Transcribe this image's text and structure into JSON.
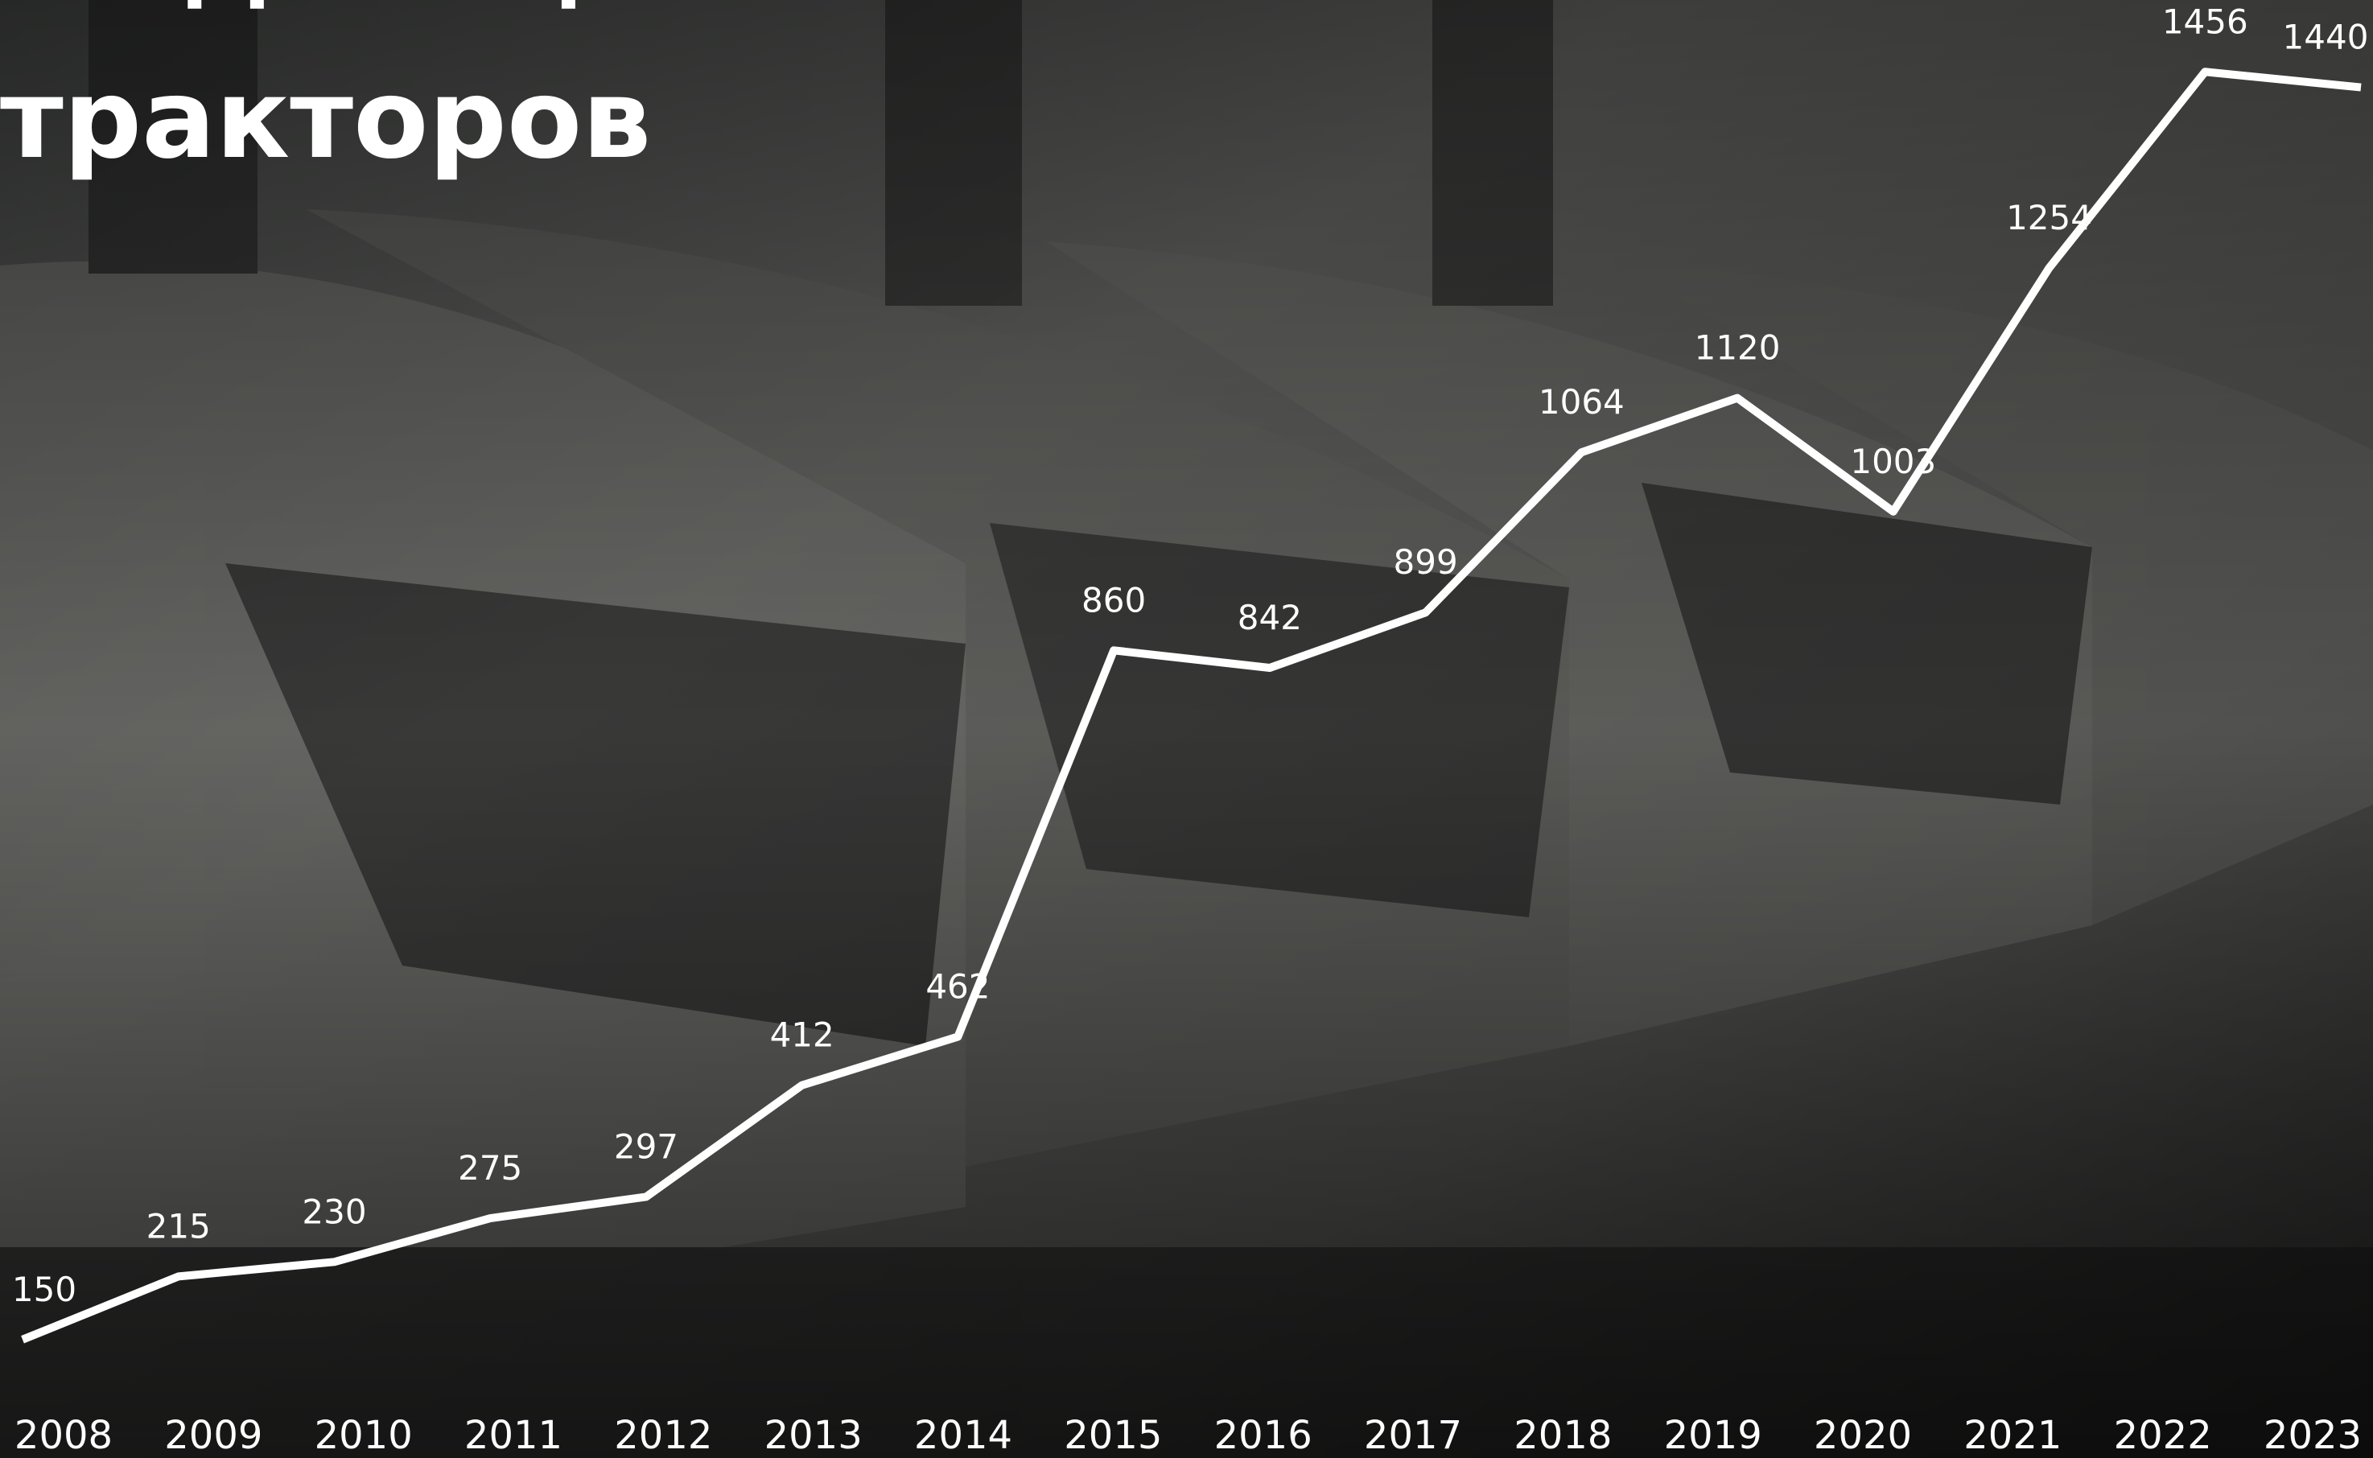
{
  "chart_data": {
    "type": "line",
    "title_lines": [
      "в единицах",
      "тракторов"
    ],
    "categories": [
      "2008",
      "2009",
      "2010",
      "2011",
      "2012",
      "2013",
      "2014",
      "2015",
      "2016",
      "2017",
      "2018",
      "2019",
      "2020",
      "2021",
      "2022",
      "2023"
    ],
    "values": [
      150,
      215,
      230,
      275,
      297,
      412,
      462,
      860,
      842,
      899,
      1064,
      1120,
      1003,
      1254,
      1456,
      1440
    ],
    "color": "#ffffff",
    "ylim": [
      28,
      1530
    ]
  }
}
